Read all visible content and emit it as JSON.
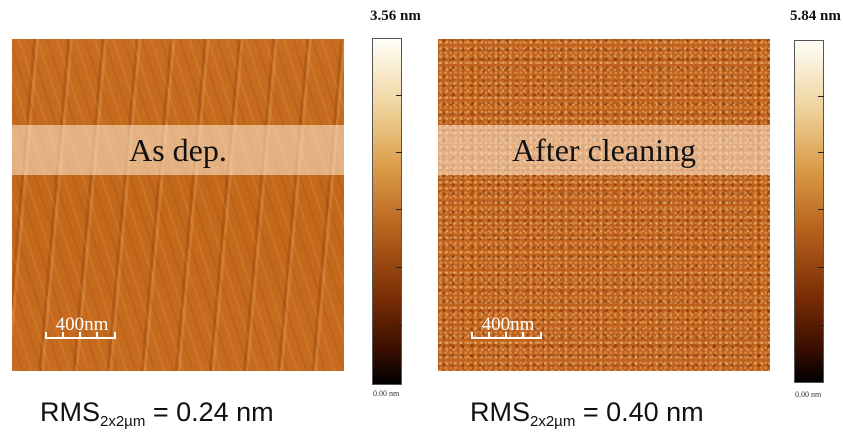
{
  "panels": [
    {
      "label": "As dep.",
      "scale_bar": "400nm",
      "colorbar_max": "3.56 nm",
      "colorbar_min": "0.00 nm",
      "rms_prefix": "RMS",
      "rms_subscript": "2x2µm",
      "rms_value": " = 0.24 nm"
    },
    {
      "label": "After cleaning",
      "scale_bar": "400nm",
      "colorbar_max": "5.84 nm",
      "colorbar_min": "0.00 nm",
      "rms_prefix": "RMS",
      "rms_subscript": "2x2µm",
      "rms_value": " = 0.40 nm"
    }
  ]
}
